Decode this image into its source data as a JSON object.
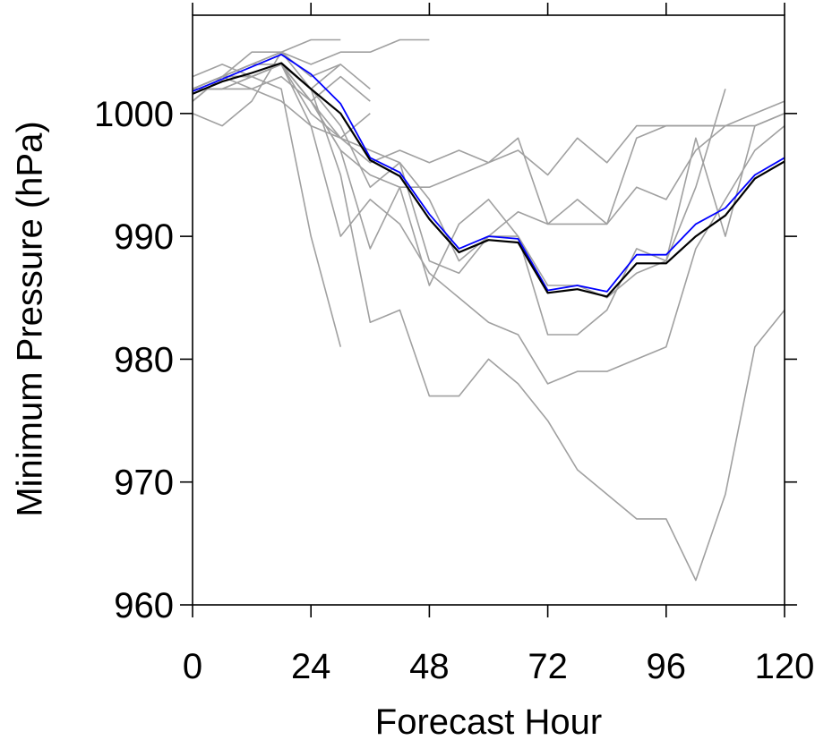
{
  "chart_data": {
    "type": "line",
    "title": "",
    "xlabel": "Forecast Hour",
    "ylabel": "Minimum Pressure (hPa)",
    "xlim": [
      0,
      120
    ],
    "ylim": [
      960,
      1008
    ],
    "xticks": [
      0,
      24,
      48,
      72,
      96,
      120
    ],
    "xtick_labels": [
      "0",
      "24",
      "48",
      "72",
      "96",
      "120"
    ],
    "yticks": [
      960,
      970,
      980,
      990,
      1000
    ],
    "ytick_labels": [
      "960",
      "970",
      "980",
      "990",
      "1000"
    ],
    "grid": false,
    "legend": "none",
    "colors": {
      "members": "#a0a0a0",
      "black_line": "#000000",
      "blue_line": "#0000ff",
      "axes": "#000000"
    },
    "series": [
      {
        "color": "#a0a0a0",
        "x": [
          0,
          6,
          12,
          18,
          24,
          30
        ],
        "y": [
          1001,
          1003,
          1005,
          1005,
          1006,
          1006
        ]
      },
      {
        "color": "#a0a0a0",
        "x": [
          0,
          6,
          12,
          18,
          24,
          30,
          36,
          42,
          48
        ],
        "y": [
          1002,
          1003,
          1004,
          1005,
          1004,
          1005,
          1005,
          1006,
          1006
        ]
      },
      {
        "color": "#a0a0a0",
        "x": [
          0,
          6,
          12,
          18,
          24,
          30,
          36
        ],
        "y": [
          1001,
          1003,
          1004,
          1005,
          1003,
          1004,
          1002
        ]
      },
      {
        "color": "#a0a0a0",
        "x": [
          0,
          6,
          12,
          18,
          24,
          30
        ],
        "y": [
          1000,
          999,
          1001,
          1005,
          1002,
          1004
        ]
      },
      {
        "color": "#a0a0a0",
        "x": [
          0,
          6,
          12,
          18,
          24,
          30,
          36
        ],
        "y": [
          1002,
          1002,
          1002,
          1003,
          1001,
          1003,
          1001
        ]
      },
      {
        "color": "#a0a0a0",
        "x": [
          0,
          6,
          12,
          18,
          24,
          30,
          36
        ],
        "y": [
          1001,
          1003,
          1002,
          1001,
          999,
          998,
          1000
        ]
      },
      {
        "color": "#a0a0a0",
        "x": [
          0,
          6,
          12,
          18,
          24,
          30
        ],
        "y": [
          1003,
          1004,
          1003,
          1002,
          990,
          981
        ]
      },
      {
        "color": "#a0a0a0",
        "x": [
          0,
          6,
          12,
          18,
          24,
          30,
          36,
          42,
          48,
          54,
          60,
          66,
          72,
          78,
          84,
          90,
          96,
          102,
          108
        ],
        "y": [
          1002,
          1002,
          1003,
          1004,
          1001,
          998,
          996,
          997,
          996,
          997,
          996,
          997,
          995,
          998,
          996,
          999,
          999,
          999,
          999
        ]
      },
      {
        "color": "#a0a0a0",
        "x": [
          0,
          6,
          12,
          18,
          24,
          30,
          36,
          42,
          48,
          54,
          60,
          66,
          72,
          78,
          84,
          90,
          96,
          102,
          108,
          114,
          120
        ],
        "y": [
          1002,
          1003,
          1004,
          1004,
          1001,
          997,
          995,
          994,
          994,
          995,
          996,
          998,
          991,
          991,
          991,
          994,
          993,
          997,
          999,
          1000,
          1001
        ]
      },
      {
        "color": "#a0a0a0",
        "x": [
          0,
          6,
          12,
          18,
          24,
          30,
          36,
          42,
          48,
          54,
          60,
          66,
          72,
          78,
          84,
          90,
          96,
          102,
          108,
          114,
          120
        ],
        "y": [
          1002,
          1002,
          1003,
          1004,
          1002,
          999,
          994,
          996,
          988,
          987,
          990,
          992,
          991,
          993,
          991,
          998,
          999,
          999,
          999,
          999,
          1000
        ]
      },
      {
        "color": "#a0a0a0",
        "x": [
          0,
          6,
          12,
          18,
          24,
          30,
          36,
          42,
          48,
          54,
          60,
          66,
          72,
          78,
          84,
          90,
          96,
          102,
          108
        ],
        "y": [
          1002,
          1003,
          1003,
          1004,
          1001,
          997,
          989,
          994,
          986,
          991,
          993,
          990,
          982,
          982,
          984,
          989,
          988,
          994,
          1002
        ]
      },
      {
        "color": "#a0a0a0",
        "x": [
          0,
          6,
          12,
          18,
          24,
          30,
          36,
          42,
          48,
          54,
          60,
          66,
          72,
          78,
          84,
          90,
          96,
          102,
          108,
          114,
          120
        ],
        "y": [
          1002,
          1003,
          1003,
          1004,
          999,
          990,
          993,
          991,
          987,
          985,
          983,
          982,
          978,
          979,
          979,
          980,
          981,
          989,
          993,
          997,
          999
        ]
      },
      {
        "color": "#a0a0a0",
        "x": [
          0,
          6,
          12,
          18,
          24,
          30,
          36,
          42,
          48,
          54,
          60,
          66,
          72,
          78,
          84,
          90,
          96,
          102,
          108,
          114,
          120
        ],
        "y": [
          1002,
          1003,
          1003,
          1004,
          1002,
          995,
          983,
          984,
          977,
          977,
          980,
          978,
          975,
          971,
          969,
          967,
          967,
          962,
          969,
          981,
          984
        ]
      },
      {
        "color": "#a0a0a0",
        "x": [
          0,
          6,
          12,
          18,
          24,
          30,
          36,
          42,
          48,
          54,
          60,
          66,
          72,
          78,
          84,
          90,
          96,
          102,
          108,
          114,
          120
        ],
        "y": [
          1002,
          1003,
          1003,
          1004,
          1000,
          998,
          997,
          996,
          993,
          988,
          990,
          990,
          986,
          986,
          985,
          987,
          988,
          998,
          990,
          999,
          1000
        ]
      },
      {
        "color": "#0000ff",
        "x": [
          0,
          6,
          12,
          18,
          24,
          30,
          36,
          42,
          48,
          54,
          60,
          66,
          72,
          78,
          84,
          90,
          96,
          102,
          108,
          114,
          120
        ],
        "y": [
          1001.8,
          1002.8,
          1003.8,
          1004.8,
          1003.2,
          1000.8,
          996.4,
          995.2,
          991.8,
          989,
          990,
          989.8,
          985.6,
          986,
          985.5,
          988.5,
          988.5,
          991,
          992.3,
          995,
          996.4
        ]
      },
      {
        "color": "#000000",
        "x": [
          0,
          6,
          12,
          18,
          24,
          30,
          36,
          42,
          48,
          54,
          60,
          66,
          72,
          78,
          84,
          90,
          96,
          102,
          108,
          114,
          120
        ],
        "y": [
          1001.6,
          1002.6,
          1003.3,
          1004.1,
          1002,
          1000,
          996.2,
          994.9,
          991.4,
          988.7,
          989.7,
          989.5,
          985.4,
          985.7,
          985.1,
          987.8,
          987.8,
          990,
          991.7,
          994.7,
          996.1
        ]
      }
    ]
  }
}
